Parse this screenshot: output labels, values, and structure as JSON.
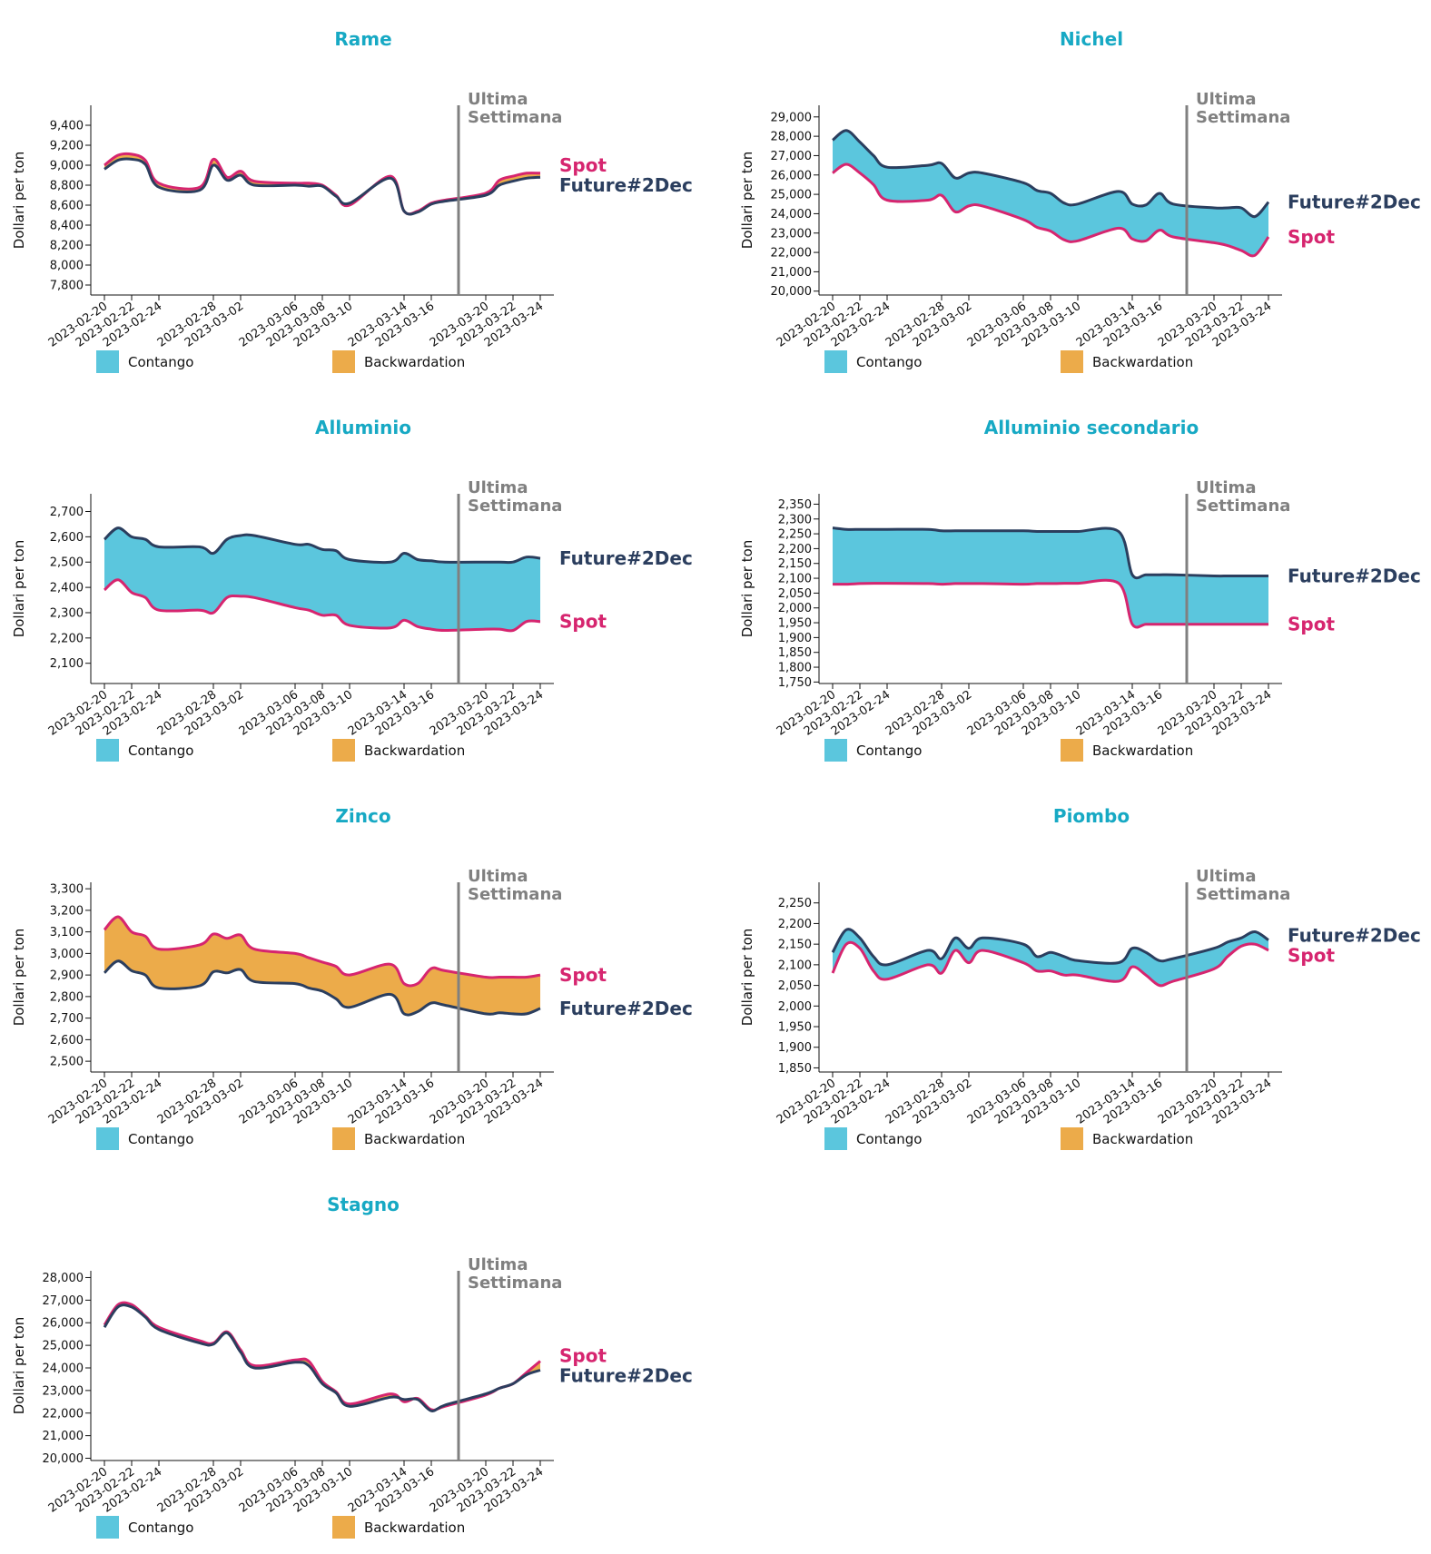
{
  "colors": {
    "title": "#17a9c4",
    "spot": "#d6256f",
    "future": "#2b3e5e",
    "contango": "#5bc6dd",
    "backwardation": "#ecab4a",
    "annotation": "#808080"
  },
  "legend": {
    "contango": "Contango",
    "backwardation": "Backwardation"
  },
  "labels": {
    "spot": "Spot",
    "future": "Future#2Dec",
    "ylabel": "Dollari per ton",
    "annotation_line1": "Ultima",
    "annotation_line2": "Settimana"
  },
  "x_ticks": [
    "2023-02-20",
    "2023-02-22",
    "2023-02-24",
    "2023-02-28",
    "2023-03-02",
    "2023-03-06",
    "2023-03-08",
    "2023-03-10",
    "2023-03-14",
    "2023-03-16",
    "2023-03-20",
    "2023-03-22",
    "2023-03-24"
  ],
  "chart_data": [
    {
      "type": "area",
      "title": "Rame",
      "xlabel": "",
      "ylabel": "Dollari per ton",
      "x": [
        "2023-02-20",
        "2023-02-21",
        "2023-02-22",
        "2023-02-23",
        "2023-02-24",
        "2023-02-27",
        "2023-02-28",
        "2023-03-01",
        "2023-03-02",
        "2023-03-03",
        "2023-03-06",
        "2023-03-07",
        "2023-03-08",
        "2023-03-09",
        "2023-03-10",
        "2023-03-13",
        "2023-03-14",
        "2023-03-15",
        "2023-03-16",
        "2023-03-17",
        "2023-03-20",
        "2023-03-21",
        "2023-03-22",
        "2023-03-23",
        "2023-03-24"
      ],
      "ylim": [
        7700,
        9600
      ],
      "y_ticks": [
        7800,
        8000,
        8200,
        8400,
        8600,
        8800,
        9000,
        9200,
        9400
      ],
      "vline": "2023-03-18",
      "series": [
        {
          "name": "Spot",
          "values": [
            9000,
            9100,
            9110,
            9050,
            8820,
            8780,
            9060,
            8880,
            8940,
            8840,
            8820,
            8820,
            8800,
            8700,
            8600,
            8890,
            8540,
            8540,
            8620,
            8650,
            8720,
            8850,
            8890,
            8920,
            8920
          ]
        },
        {
          "name": "Future#2Dec",
          "values": [
            8960,
            9050,
            9060,
            9010,
            8780,
            8750,
            9000,
            8850,
            8900,
            8800,
            8800,
            8790,
            8790,
            8690,
            8620,
            8870,
            8540,
            8530,
            8610,
            8640,
            8700,
            8800,
            8840,
            8870,
            8880
          ]
        }
      ]
    },
    {
      "type": "area",
      "title": "Nichel",
      "xlabel": "",
      "ylabel": "Dollari per ton",
      "x": [
        "2023-02-20",
        "2023-02-21",
        "2023-02-22",
        "2023-02-23",
        "2023-02-24",
        "2023-02-27",
        "2023-02-28",
        "2023-03-01",
        "2023-03-02",
        "2023-03-03",
        "2023-03-06",
        "2023-03-07",
        "2023-03-08",
        "2023-03-09",
        "2023-03-10",
        "2023-03-13",
        "2023-03-14",
        "2023-03-15",
        "2023-03-16",
        "2023-03-17",
        "2023-03-20",
        "2023-03-21",
        "2023-03-22",
        "2023-03-23",
        "2023-03-24"
      ],
      "ylim": [
        19800,
        29600
      ],
      "y_ticks": [
        20000,
        21000,
        22000,
        23000,
        24000,
        25000,
        26000,
        27000,
        28000,
        29000
      ],
      "vline": "2023-03-18",
      "series": [
        {
          "name": "Spot",
          "values": [
            26100,
            26550,
            26100,
            25500,
            24700,
            24700,
            24950,
            24100,
            24400,
            24400,
            23700,
            23300,
            23100,
            22650,
            22600,
            23250,
            22700,
            22600,
            23150,
            22800,
            22500,
            22350,
            22100,
            21850,
            22800
          ]
        },
        {
          "name": "Future#2Dec",
          "values": [
            27800,
            28300,
            27700,
            27000,
            26400,
            26500,
            26600,
            25850,
            26100,
            26100,
            25600,
            25200,
            25050,
            24550,
            24500,
            25150,
            24500,
            24450,
            25050,
            24500,
            24300,
            24300,
            24300,
            23850,
            24600
          ]
        }
      ]
    },
    {
      "type": "area",
      "title": "Alluminio",
      "xlabel": "",
      "ylabel": "Dollari per ton",
      "x": [
        "2023-02-20",
        "2023-02-21",
        "2023-02-22",
        "2023-02-23",
        "2023-02-24",
        "2023-02-27",
        "2023-02-28",
        "2023-03-01",
        "2023-03-02",
        "2023-03-03",
        "2023-03-06",
        "2023-03-07",
        "2023-03-08",
        "2023-03-09",
        "2023-03-10",
        "2023-03-13",
        "2023-03-14",
        "2023-03-15",
        "2023-03-16",
        "2023-03-17",
        "2023-03-20",
        "2023-03-21",
        "2023-03-22",
        "2023-03-23",
        "2023-03-24"
      ],
      "ylim": [
        2020,
        2770
      ],
      "y_ticks": [
        2100,
        2200,
        2300,
        2400,
        2500,
        2600,
        2700
      ],
      "vline": "2023-03-18",
      "series": [
        {
          "name": "Spot",
          "values": [
            2390,
            2430,
            2380,
            2360,
            2310,
            2310,
            2300,
            2360,
            2365,
            2360,
            2320,
            2310,
            2290,
            2290,
            2250,
            2240,
            2270,
            2245,
            2235,
            2230,
            2235,
            2235,
            2230,
            2265,
            2265
          ]
        },
        {
          "name": "Future#2Dec",
          "values": [
            2590,
            2635,
            2600,
            2590,
            2560,
            2560,
            2535,
            2590,
            2605,
            2605,
            2570,
            2570,
            2550,
            2545,
            2510,
            2500,
            2535,
            2510,
            2505,
            2500,
            2500,
            2500,
            2500,
            2520,
            2515
          ]
        }
      ]
    },
    {
      "type": "area",
      "title": "Alluminio secondario",
      "xlabel": "",
      "ylabel": "Dollari per ton",
      "x": [
        "2023-02-20",
        "2023-02-21",
        "2023-02-22",
        "2023-02-23",
        "2023-02-24",
        "2023-02-27",
        "2023-02-28",
        "2023-03-01",
        "2023-03-02",
        "2023-03-03",
        "2023-03-06",
        "2023-03-07",
        "2023-03-08",
        "2023-03-09",
        "2023-03-10",
        "2023-03-13",
        "2023-03-14",
        "2023-03-15",
        "2023-03-16",
        "2023-03-17",
        "2023-03-20",
        "2023-03-21",
        "2023-03-22",
        "2023-03-23",
        "2023-03-24"
      ],
      "ylim": [
        1745,
        2385
      ],
      "y_ticks": [
        1750,
        1800,
        1850,
        1900,
        1950,
        2000,
        2050,
        2100,
        2150,
        2200,
        2250,
        2300,
        2350
      ],
      "vline": "2023-03-18",
      "series": [
        {
          "name": "Spot",
          "values": [
            2080,
            2080,
            2082,
            2083,
            2083,
            2082,
            2080,
            2082,
            2082,
            2082,
            2080,
            2082,
            2082,
            2083,
            2083,
            2083,
            1945,
            1945,
            1945,
            1945,
            1945,
            1945,
            1945,
            1945,
            1945
          ]
        },
        {
          "name": "Future#2Dec",
          "values": [
            2270,
            2265,
            2265,
            2265,
            2265,
            2265,
            2260,
            2260,
            2260,
            2260,
            2260,
            2258,
            2258,
            2258,
            2258,
            2258,
            2112,
            2112,
            2112,
            2112,
            2108,
            2108,
            2108,
            2108,
            2108
          ]
        }
      ]
    },
    {
      "type": "area",
      "title": "Zinco",
      "xlabel": "",
      "ylabel": "Dollari per ton",
      "x": [
        "2023-02-20",
        "2023-02-21",
        "2023-02-22",
        "2023-02-23",
        "2023-02-24",
        "2023-02-27",
        "2023-02-28",
        "2023-03-01",
        "2023-03-02",
        "2023-03-03",
        "2023-03-06",
        "2023-03-07",
        "2023-03-08",
        "2023-03-09",
        "2023-03-10",
        "2023-03-13",
        "2023-03-14",
        "2023-03-15",
        "2023-03-16",
        "2023-03-17",
        "2023-03-20",
        "2023-03-21",
        "2023-03-22",
        "2023-03-23",
        "2023-03-24"
      ],
      "ylim": [
        2450,
        3330
      ],
      "y_ticks": [
        2500,
        2600,
        2700,
        2800,
        2900,
        3000,
        3100,
        3200,
        3300
      ],
      "vline": "2023-03-18",
      "series": [
        {
          "name": "Spot",
          "values": [
            3110,
            3170,
            3100,
            3080,
            3020,
            3040,
            3090,
            3070,
            3085,
            3020,
            3000,
            2980,
            2960,
            2940,
            2900,
            2950,
            2860,
            2860,
            2930,
            2920,
            2890,
            2890,
            2890,
            2890,
            2900
          ]
        },
        {
          "name": "Future#2Dec",
          "values": [
            2910,
            2965,
            2920,
            2900,
            2840,
            2850,
            2915,
            2910,
            2925,
            2870,
            2860,
            2840,
            2825,
            2790,
            2750,
            2810,
            2720,
            2730,
            2770,
            2760,
            2720,
            2725,
            2720,
            2720,
            2745
          ]
        }
      ]
    },
    {
      "type": "area",
      "title": "Piombo",
      "xlabel": "",
      "ylabel": "Dollari per ton",
      "x": [
        "2023-02-20",
        "2023-02-21",
        "2023-02-22",
        "2023-02-23",
        "2023-02-24",
        "2023-02-27",
        "2023-02-28",
        "2023-03-01",
        "2023-03-02",
        "2023-03-03",
        "2023-03-06",
        "2023-03-07",
        "2023-03-08",
        "2023-03-09",
        "2023-03-10",
        "2023-03-13",
        "2023-03-14",
        "2023-03-15",
        "2023-03-16",
        "2023-03-17",
        "2023-03-20",
        "2023-03-21",
        "2023-03-22",
        "2023-03-23",
        "2023-03-24"
      ],
      "ylim": [
        1840,
        2300
      ],
      "y_ticks": [
        1850,
        1900,
        1950,
        2000,
        2050,
        2100,
        2150,
        2200,
        2250
      ],
      "vline": "2023-03-18",
      "series": [
        {
          "name": "Spot",
          "values": [
            2080,
            2150,
            2140,
            2085,
            2065,
            2100,
            2080,
            2135,
            2105,
            2135,
            2105,
            2085,
            2085,
            2075,
            2075,
            2060,
            2095,
            2075,
            2050,
            2060,
            2090,
            2120,
            2145,
            2150,
            2135
          ]
        },
        {
          "name": "Future#2Dec",
          "values": [
            2130,
            2185,
            2165,
            2120,
            2100,
            2135,
            2115,
            2165,
            2140,
            2165,
            2150,
            2120,
            2130,
            2120,
            2110,
            2105,
            2140,
            2130,
            2110,
            2115,
            2140,
            2155,
            2165,
            2180,
            2160
          ]
        }
      ]
    },
    {
      "type": "area",
      "title": "Stagno",
      "xlabel": "",
      "ylabel": "Dollari per ton",
      "x": [
        "2023-02-20",
        "2023-02-21",
        "2023-02-22",
        "2023-02-23",
        "2023-02-24",
        "2023-02-27",
        "2023-02-28",
        "2023-03-01",
        "2023-03-02",
        "2023-03-03",
        "2023-03-06",
        "2023-03-07",
        "2023-03-08",
        "2023-03-09",
        "2023-03-10",
        "2023-03-13",
        "2023-03-14",
        "2023-03-15",
        "2023-03-16",
        "2023-03-17",
        "2023-03-20",
        "2023-03-21",
        "2023-03-22",
        "2023-03-23",
        "2023-03-24"
      ],
      "ylim": [
        19900,
        28300
      ],
      "y_ticks": [
        20000,
        21000,
        22000,
        23000,
        24000,
        25000,
        26000,
        27000,
        28000
      ],
      "vline": "2023-03-18",
      "series": [
        {
          "name": "Spot",
          "values": [
            25900,
            26800,
            26800,
            26300,
            25800,
            25200,
            25100,
            25600,
            24800,
            24100,
            24350,
            24300,
            23400,
            22950,
            22400,
            22850,
            22500,
            22650,
            22150,
            22300,
            22800,
            23100,
            23300,
            23800,
            24300
          ]
        },
        {
          "name": "Future#2Dec",
          "values": [
            25800,
            26700,
            26700,
            26250,
            25700,
            25100,
            25050,
            25550,
            24700,
            24000,
            24250,
            24100,
            23300,
            22900,
            22300,
            22700,
            22600,
            22600,
            22100,
            22350,
            22850,
            23100,
            23300,
            23700,
            23900
          ]
        }
      ]
    }
  ]
}
